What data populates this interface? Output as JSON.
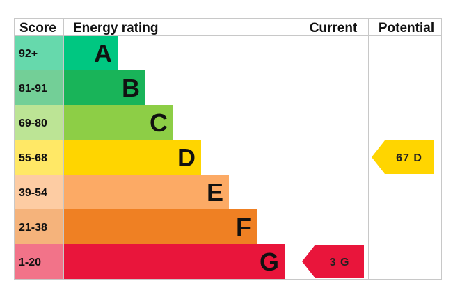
{
  "headers": {
    "score": "Score",
    "energy_rating": "Energy rating",
    "current": "Current",
    "potential": "Potential"
  },
  "chart_data": {
    "type": "bar",
    "bands": [
      {
        "letter": "A",
        "score": "92+",
        "bar_color": "#00c781",
        "score_bg": "#66d9ac"
      },
      {
        "letter": "B",
        "score": "81-91",
        "bar_color": "#19b459",
        "score_bg": "#73cf97"
      },
      {
        "letter": "C",
        "score": "69-80",
        "bar_color": "#8dce46",
        "score_bg": "#bce495"
      },
      {
        "letter": "D",
        "score": "55-68",
        "bar_color": "#ffd500",
        "score_bg": "#ffe866"
      },
      {
        "letter": "E",
        "score": "39-54",
        "bar_color": "#fcaa65",
        "score_bg": "#fdcca3"
      },
      {
        "letter": "F",
        "score": "21-38",
        "bar_color": "#ef8023",
        "score_bg": "#f5b37b"
      },
      {
        "letter": "G",
        "score": "1-20",
        "bar_color": "#e9153b",
        "score_bg": "#f27389"
      }
    ],
    "current": {
      "value": 3,
      "band": "G",
      "label": "3 G",
      "color": "#e9153b"
    },
    "potential": {
      "value": 67,
      "band": "D",
      "label": "67 D",
      "color": "#ffd500"
    }
  }
}
